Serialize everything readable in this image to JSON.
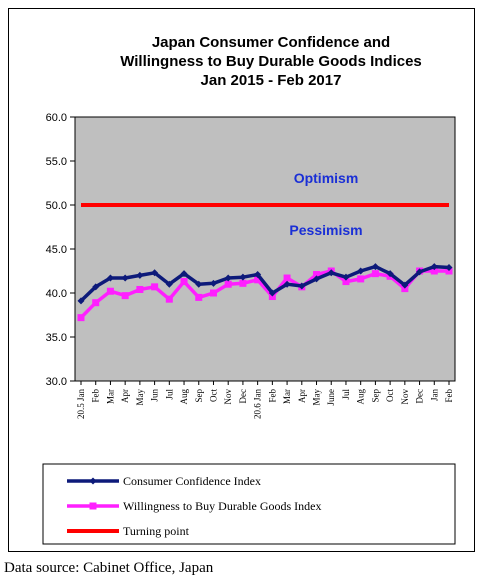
{
  "chart_data": {
    "type": "line",
    "title": [
      "Japan Consumer Confidence and",
      "Willingness to Buy Durable Goods Indices",
      "Jan 2015 - Feb 2017"
    ],
    "ylim": [
      30,
      60
    ],
    "yticks": [
      "60.0",
      "55.0",
      "50.0",
      "45.0",
      "40.0",
      "35.0",
      "30.0"
    ],
    "x_labels": [
      "20.5 Jan",
      "Feb",
      "Mar",
      "Apr",
      "May",
      "Jun",
      "Jul",
      "Aug",
      "Sep",
      "Oct",
      "Nov",
      "Dec",
      "20.6 Jan",
      "Feb",
      "Mar",
      "Apr",
      "May",
      "June",
      "Jul",
      "Aug",
      "Sep",
      "Oct",
      "Nov",
      "Dec",
      "Jan",
      "Feb"
    ],
    "annotations": {
      "above": "Optimism",
      "below": "Pessimism"
    },
    "series": [
      {
        "name": "Consumer Confidence Index",
        "color": "#0d1a7a",
        "values": [
          39.1,
          40.7,
          41.7,
          41.7,
          42.0,
          42.3,
          41.0,
          42.2,
          41.0,
          41.1,
          41.7,
          41.8,
          42.1,
          40.0,
          41.0,
          40.8,
          41.6,
          42.3,
          41.8,
          42.5,
          43.0,
          42.2,
          40.9,
          42.4,
          43.0,
          42.9
        ]
      },
      {
        "name": "Willingness to Buy Durable Goods Index",
        "color": "#ff1fff",
        "values": [
          37.2,
          38.9,
          40.2,
          39.7,
          40.4,
          40.7,
          39.3,
          41.3,
          39.5,
          40.0,
          41.0,
          41.1,
          41.5,
          39.6,
          41.7,
          40.7,
          42.1,
          42.5,
          41.3,
          41.6,
          42.2,
          41.9,
          40.5,
          42.5,
          42.5,
          42.5
        ]
      },
      {
        "name": "Turning point",
        "color": "#ff0000",
        "values": [
          50,
          50,
          50,
          50,
          50,
          50,
          50,
          50,
          50,
          50,
          50,
          50,
          50,
          50,
          50,
          50,
          50,
          50,
          50,
          50,
          50,
          50,
          50,
          50,
          50,
          50
        ]
      }
    ],
    "grid": false,
    "legend_position": "bottom"
  },
  "source_note": "Data source: Cabinet Office, Japan"
}
